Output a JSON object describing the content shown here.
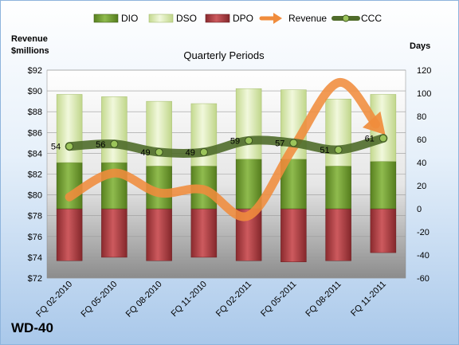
{
  "chart_data": {
    "type": "bar",
    "title": "Quarterly Periods",
    "company": "WD-40",
    "left_axis_label_line1": "Revenue",
    "left_axis_label_line2": "$millions",
    "right_axis_label": "Days",
    "left_ylim": [
      72,
      92
    ],
    "left_ticks": [
      "$72",
      "$74",
      "$76",
      "$78",
      "$80",
      "$82",
      "$84",
      "$86",
      "$88",
      "$90",
      "$92"
    ],
    "right_ylim": [
      -60,
      120
    ],
    "right_ticks": [
      "-60",
      "-40",
      "-20",
      "0",
      "20",
      "40",
      "60",
      "80",
      "100",
      "120"
    ],
    "categories": [
      "FQ 02-2010",
      "FQ 05-2010",
      "FQ 08-2010",
      "FQ 11-2010",
      "FQ 02-2011",
      "FQ 05-2011",
      "FQ 08-2011",
      "FQ 11-2011"
    ],
    "legend_position": "top",
    "grid": true,
    "series": [
      {
        "name": "DIO",
        "type": "stacked-bar",
        "axis": "right",
        "color": "#6e9a30",
        "values": [
          40,
          40,
          37,
          37,
          43,
          43,
          37,
          41
        ]
      },
      {
        "name": "DSO",
        "type": "stacked-bar",
        "axis": "right",
        "color": "#d8e8b0",
        "values": [
          59,
          57,
          56,
          54,
          61,
          60,
          58,
          58
        ]
      },
      {
        "name": "DPO",
        "type": "stacked-bar",
        "axis": "right",
        "color": "#a8343a",
        "values": [
          -45,
          -42,
          -45,
          -42,
          -45,
          -46,
          -45,
          -38
        ]
      },
      {
        "name": "Revenue",
        "type": "line",
        "axis": "left",
        "color": "#f08c3c",
        "values": [
          79.8,
          82.1,
          80.2,
          80.5,
          78.0,
          84.6,
          90.8,
          86.0
        ]
      },
      {
        "name": "CCC",
        "type": "line",
        "axis": "right",
        "color": "#4f6b2a",
        "values": [
          54,
          56,
          49,
          49,
          59,
          57,
          51,
          61
        ],
        "labels": [
          "54",
          "56",
          "49",
          "49",
          "59",
          "57",
          "51",
          "61"
        ]
      }
    ]
  }
}
